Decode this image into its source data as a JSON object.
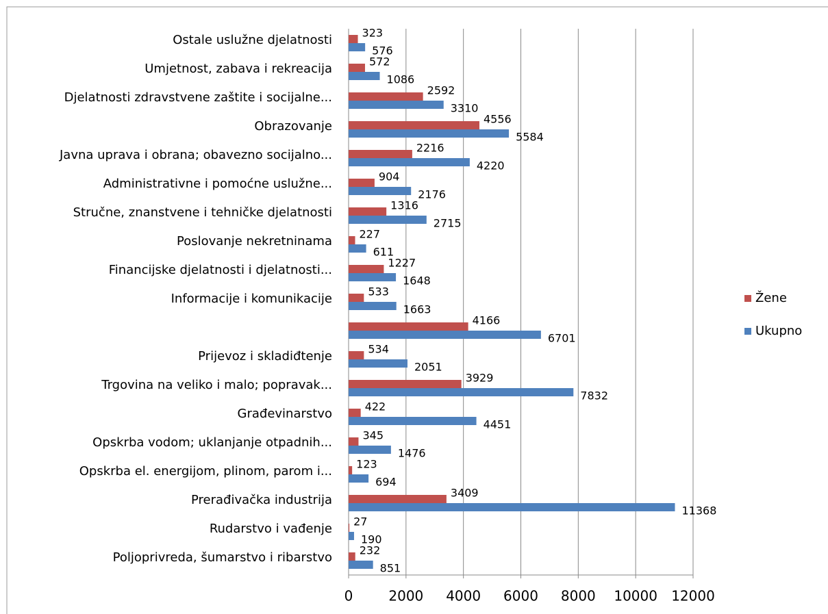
{
  "chart_data": {
    "type": "barh",
    "categories": [
      "Poljoprivreda, šumarstvo i ribarstvo",
      "Rudarstvo i vađenje",
      "Prerađivačka industrija",
      "Opskrba el. energijom, plinom, parom i...",
      "Opskrba vodom; uklanjanje otpadnih...",
      "Građevinarstvo",
      "Trgovina na veliko i malo; popravak...",
      "Prijevoz i skladiđtenje",
      null,
      "Informacije i komunikacije",
      "Financijske djelatnosti i djelatnosti...",
      "Poslovanje nekretninama",
      "Stručne, znanstvene i tehničke djelatnosti",
      "Administrativne i pomoćne uslužne...",
      "Javna uprava i obrana; obavezno socijalno...",
      "Obrazovanje",
      "Djelatnosti zdravstvene zaštite i socijalne...",
      "Umjetnost, zabava i rekreacija",
      "Ostale uslužne djelatnosti"
    ],
    "series": [
      {
        "name": "Žene",
        "color": "#c0504d",
        "values": [
          232,
          27,
          3409,
          123,
          345,
          422,
          3929,
          534,
          4166,
          533,
          1227,
          227,
          1316,
          904,
          2216,
          4556,
          2592,
          572,
          323
        ]
      },
      {
        "name": "Ukupno",
        "color": "#4f81bd",
        "values": [
          851,
          190,
          11368,
          694,
          1476,
          4451,
          7832,
          2051,
          6701,
          1663,
          1648,
          611,
          2715,
          2176,
          4220,
          5584,
          3310,
          1086,
          576
        ]
      }
    ],
    "xlim": [
      0,
      12000
    ],
    "xticks": [
      0,
      2000,
      4000,
      6000,
      8000,
      10000,
      12000
    ],
    "grid": true,
    "legend": "right"
  }
}
